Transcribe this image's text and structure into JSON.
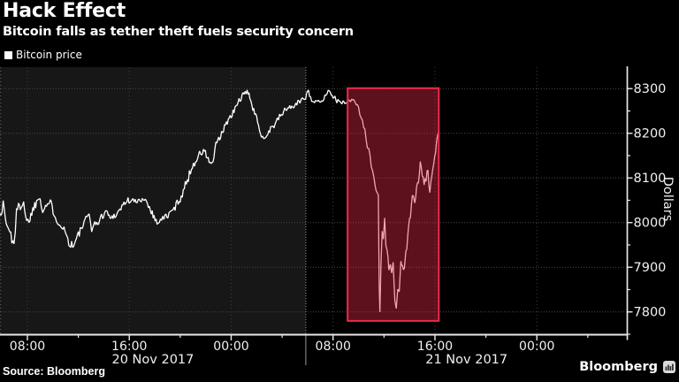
{
  "colors": {
    "background": "#000000",
    "day_band": "#171717",
    "grid_h": "#4c4a44",
    "grid_v": "#3d3d3d",
    "separator": "#999999",
    "axis": "#e8e8e8",
    "tick_text": "#f0f0f0",
    "line": "#ffffff",
    "highlight_fill": "rgba(220,40,70,0.42)",
    "highlight_border": "#ec2b45",
    "brand_icon_bg": "#d9d9d9",
    "brand_icon_bars": "#222222"
  },
  "footer": {
    "source": "Source: Bloomberg",
    "brand": "Bloomberg",
    "brand_icon": "bloomberg-terminal-bars-icon"
  },
  "chart_data": {
    "type": "line",
    "title": "Hack Effect",
    "subtitle": "Bitcoin falls as tether theft fuels security concern",
    "ylabel": "Dollars",
    "grid": true,
    "legend_position": "top-left",
    "x_unit": "hours since 20 Nov 2017 00:00",
    "xlim": [
      5.85,
      55.1
    ],
    "ylim": [
      7749,
      8348
    ],
    "x_major_ticks": [
      {
        "t": 8,
        "label": "08:00"
      },
      {
        "t": 16,
        "label": "16:00"
      },
      {
        "t": 24,
        "label": "00:00"
      },
      {
        "t": 32,
        "label": "08:00"
      },
      {
        "t": 40,
        "label": "16:00"
      },
      {
        "t": 48,
        "label": "00:00"
      }
    ],
    "x_minor_ticks": [
      12,
      20,
      28,
      36,
      44,
      52
    ],
    "y_major_ticks": [
      {
        "p": 7800,
        "label": "7800"
      },
      {
        "p": 7900,
        "label": "7900"
      },
      {
        "p": 8000,
        "label": "8000"
      },
      {
        "p": 8100,
        "label": "8100"
      },
      {
        "p": 8200,
        "label": "8200"
      },
      {
        "p": 8300,
        "label": "8300"
      }
    ],
    "y_minor_ticks": [
      7750,
      7850,
      7950,
      8050,
      8150,
      8250
    ],
    "date_bands": [
      {
        "label": "20 Nov 2017",
        "from": 5.85,
        "to": 29.86,
        "shaded": true
      },
      {
        "label": "21 Nov 2017",
        "from": 29.86,
        "to": 55.1,
        "shaded": false
      }
    ],
    "highlight_box": {
      "t_from": 33.14,
      "t_to": 40.3,
      "price_from": 7780,
      "price_to": 8301
    },
    "series": [
      {
        "name": "Bitcoin price",
        "color": "#ffffff",
        "points": [
          [
            5.85,
            8020,
            35
          ],
          [
            6.1,
            8040,
            30
          ],
          [
            6.4,
            7992,
            40
          ],
          [
            6.7,
            7972,
            45
          ],
          [
            6.95,
            7956,
            35
          ],
          [
            7.15,
            8022,
            32
          ],
          [
            7.45,
            8040,
            28
          ],
          [
            7.7,
            8048,
            22
          ],
          [
            7.95,
            7998,
            26
          ],
          [
            8.2,
            8012,
            22
          ],
          [
            8.5,
            8034,
            24
          ],
          [
            8.8,
            8052,
            22
          ],
          [
            9.0,
            8058,
            20
          ],
          [
            9.2,
            8030,
            22
          ],
          [
            9.5,
            8040,
            18
          ],
          [
            9.8,
            8045,
            18
          ],
          [
            10.1,
            8022,
            20
          ],
          [
            10.45,
            8000,
            22
          ],
          [
            10.8,
            7992,
            20
          ],
          [
            11.1,
            7968,
            22
          ],
          [
            11.4,
            7950,
            24
          ],
          [
            11.7,
            7952,
            24
          ],
          [
            12.0,
            7972,
            22
          ],
          [
            12.3,
            7990,
            20
          ],
          [
            12.6,
            8006,
            18
          ],
          [
            12.85,
            8020,
            18
          ],
          [
            13.05,
            7988,
            18
          ],
          [
            13.3,
            7996,
            16
          ],
          [
            13.6,
            8002,
            16
          ],
          [
            13.9,
            8016,
            16
          ],
          [
            14.2,
            8026,
            16
          ],
          [
            14.5,
            8010,
            15
          ],
          [
            14.8,
            8016,
            15
          ],
          [
            15.1,
            8022,
            15
          ],
          [
            15.5,
            8040,
            16
          ],
          [
            15.9,
            8050,
            16
          ],
          [
            16.3,
            8048,
            15
          ],
          [
            16.7,
            8046,
            14
          ],
          [
            17.1,
            8056,
            14
          ],
          [
            17.5,
            8040,
            16
          ],
          [
            17.8,
            8022,
            16
          ],
          [
            18.1,
            8002,
            18
          ],
          [
            18.45,
            8006,
            16
          ],
          [
            18.8,
            8012,
            16
          ],
          [
            19.2,
            8020,
            16
          ],
          [
            19.6,
            8035,
            18
          ],
          [
            20.0,
            8055,
            20
          ],
          [
            20.4,
            8082,
            22
          ],
          [
            20.8,
            8115,
            22
          ],
          [
            21.2,
            8140,
            20
          ],
          [
            21.6,
            8155,
            18
          ],
          [
            21.9,
            8160,
            18
          ],
          [
            22.2,
            8142,
            20
          ],
          [
            22.5,
            8128,
            20
          ],
          [
            22.8,
            8170,
            22
          ],
          [
            23.1,
            8190,
            20
          ],
          [
            23.4,
            8206,
            18
          ],
          [
            23.7,
            8228,
            18
          ],
          [
            24.0,
            8236,
            16
          ],
          [
            24.3,
            8255,
            16
          ],
          [
            24.7,
            8278,
            15
          ],
          [
            25.1,
            8288,
            14
          ],
          [
            25.4,
            8293,
            13
          ],
          [
            25.7,
            8252,
            18
          ],
          [
            26.0,
            8235,
            16
          ],
          [
            26.3,
            8206,
            18
          ],
          [
            26.55,
            8186,
            18
          ],
          [
            26.8,
            8198,
            16
          ],
          [
            27.1,
            8210,
            16
          ],
          [
            27.45,
            8222,
            15
          ],
          [
            27.8,
            8236,
            14
          ],
          [
            28.2,
            8252,
            14
          ],
          [
            28.6,
            8258,
            13
          ],
          [
            29.0,
            8262,
            13
          ],
          [
            29.4,
            8272,
            12
          ],
          [
            29.85,
            8282,
            12
          ],
          [
            30.0,
            8298,
            14
          ],
          [
            30.15,
            8288,
            12
          ],
          [
            30.4,
            8272,
            13
          ],
          [
            30.7,
            8268,
            12
          ],
          [
            31.1,
            8272,
            11
          ],
          [
            31.45,
            8286,
            10
          ],
          [
            31.7,
            8297,
            9
          ],
          [
            32.0,
            8284,
            11
          ],
          [
            32.3,
            8272,
            11
          ],
          [
            32.7,
            8268,
            10
          ],
          [
            33.0,
            8271,
            9
          ],
          [
            33.3,
            8272,
            9
          ],
          [
            33.6,
            8276,
            9
          ],
          [
            33.9,
            8264,
            11
          ],
          [
            34.1,
            8246,
            13
          ],
          [
            34.3,
            8228,
            14
          ],
          [
            34.5,
            8212,
            16
          ],
          [
            34.7,
            8172,
            20
          ],
          [
            34.9,
            8142,
            22
          ],
          [
            35.1,
            8118,
            26
          ],
          [
            35.3,
            8090,
            28
          ],
          [
            35.45,
            8072,
            26
          ],
          [
            35.55,
            8066,
            22
          ],
          [
            35.62,
            7850,
            40
          ],
          [
            35.68,
            7806,
            25
          ],
          [
            35.76,
            7902,
            45
          ],
          [
            35.86,
            7986,
            32
          ],
          [
            35.95,
            7960,
            30
          ],
          [
            36.05,
            8012,
            28
          ],
          [
            36.15,
            7936,
            34
          ],
          [
            36.25,
            7952,
            30
          ],
          [
            36.38,
            7888,
            34
          ],
          [
            36.5,
            7920,
            32
          ],
          [
            36.6,
            7874,
            32
          ],
          [
            36.72,
            7898,
            30
          ],
          [
            36.85,
            7838,
            30
          ],
          [
            36.96,
            7806,
            24
          ],
          [
            37.08,
            7856,
            28
          ],
          [
            37.2,
            7842,
            28
          ],
          [
            37.32,
            7906,
            28
          ],
          [
            37.45,
            7895,
            26
          ],
          [
            37.6,
            7902,
            24
          ],
          [
            37.72,
            7938,
            24
          ],
          [
            37.86,
            7964,
            22
          ],
          [
            38.0,
            8002,
            22
          ],
          [
            38.15,
            8036,
            20
          ],
          [
            38.3,
            8068,
            20
          ],
          [
            38.42,
            8042,
            20
          ],
          [
            38.56,
            8076,
            18
          ],
          [
            38.7,
            8092,
            18
          ],
          [
            38.85,
            8132,
            18
          ],
          [
            39.0,
            8106,
            18
          ],
          [
            39.15,
            8082,
            18
          ],
          [
            39.3,
            8100,
            17
          ],
          [
            39.45,
            8116,
            16
          ],
          [
            39.6,
            8068,
            18
          ],
          [
            39.75,
            8098,
            16
          ],
          [
            39.9,
            8126,
            15
          ],
          [
            40.05,
            8162,
            13
          ],
          [
            40.2,
            8192,
            11
          ],
          [
            40.3,
            8206,
            8
          ]
        ]
      }
    ]
  }
}
